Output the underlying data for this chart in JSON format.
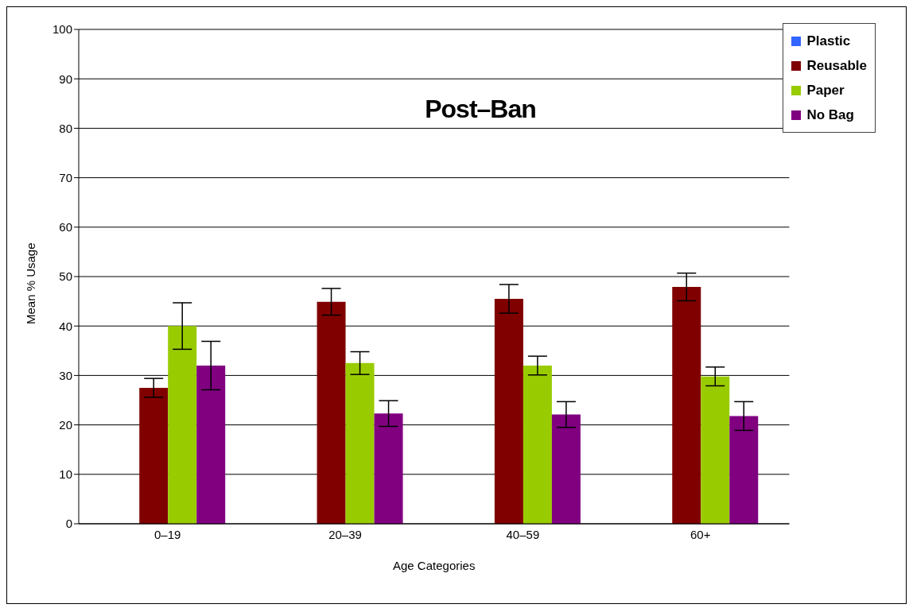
{
  "chart_data": {
    "type": "bar",
    "title": "Post–Ban",
    "xlabel": "Age Categories",
    "ylabel": "Mean % Usage",
    "categories": [
      "0–19",
      "20–39",
      "40–59",
      "60+"
    ],
    "series": [
      {
        "name": "Plastic",
        "color": "#3366ff",
        "values": [
          0,
          0,
          0,
          0
        ]
      },
      {
        "name": "Reusable",
        "color": "#800000",
        "values": [
          27.5,
          44.9,
          45.5,
          47.9
        ],
        "errors": [
          1.9,
          2.7,
          2.9,
          2.8
        ]
      },
      {
        "name": "Paper",
        "color": "#99cc00",
        "values": [
          40,
          32.5,
          32,
          29.8
        ],
        "errors": [
          4.7,
          2.3,
          1.9,
          1.9
        ]
      },
      {
        "name": "No Bag",
        "color": "#800080",
        "values": [
          32,
          22.3,
          22.1,
          21.8
        ],
        "errors": [
          4.9,
          2.6,
          2.6,
          2.9
        ]
      }
    ],
    "ylim": [
      0,
      100
    ],
    "yticks": [
      0,
      10,
      20,
      30,
      40,
      50,
      60,
      70,
      80,
      90,
      100
    ],
    "grid": "y",
    "legend": "top right"
  }
}
